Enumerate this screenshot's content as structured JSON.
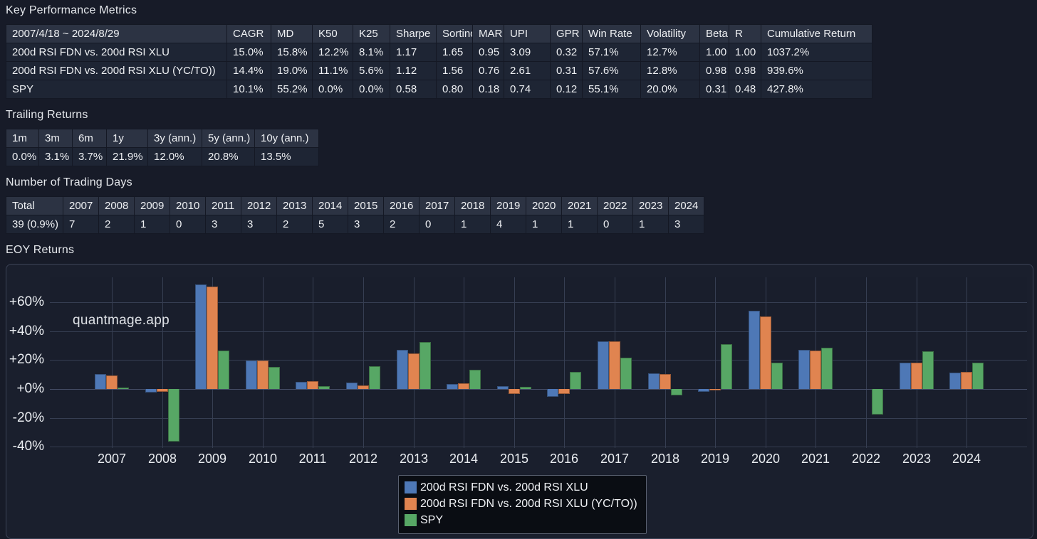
{
  "kpm": {
    "title": "Key Performance Metrics",
    "header": [
      "2007/4/18 ~ 2024/8/29",
      "CAGR",
      "MD",
      "K50",
      "K25",
      "Sharpe",
      "Sortino",
      "MAR",
      "UPI",
      "GPR",
      "Win Rate",
      "Volatility",
      "Beta",
      "R",
      "Cumulative Return"
    ],
    "rows": [
      [
        "200d RSI FDN vs. 200d RSI XLU",
        "15.0%",
        "15.8%",
        "12.2%",
        "8.1%",
        "1.17",
        "1.65",
        "0.95",
        "3.09",
        "0.32",
        "57.1%",
        "12.7%",
        "1.00",
        "1.00",
        "1037.2%"
      ],
      [
        "200d RSI FDN vs. 200d RSI XLU (YC/TO))",
        "14.4%",
        "19.0%",
        "11.1%",
        "5.6%",
        "1.12",
        "1.56",
        "0.76",
        "2.61",
        "0.31",
        "57.6%",
        "12.8%",
        "0.98",
        "0.98",
        "939.6%"
      ],
      [
        "SPY",
        "10.1%",
        "55.2%",
        "0.0%",
        "0.0%",
        "0.58",
        "0.80",
        "0.18",
        "0.74",
        "0.12",
        "55.1%",
        "20.0%",
        "0.31",
        "0.48",
        "427.8%"
      ]
    ]
  },
  "trailing": {
    "title": "Trailing Returns",
    "header": [
      "1m",
      "3m",
      "6m",
      "1y",
      "3y (ann.)",
      "5y (ann.)",
      "10y (ann.)"
    ],
    "rows": [
      [
        "0.0%",
        "3.1%",
        "3.7%",
        "21.9%",
        "12.0%",
        "20.8%",
        "13.5%"
      ]
    ]
  },
  "trading_days": {
    "title": "Number of Trading Days",
    "header": [
      "Total",
      "2007",
      "2008",
      "2009",
      "2010",
      "2011",
      "2012",
      "2013",
      "2014",
      "2015",
      "2016",
      "2017",
      "2018",
      "2019",
      "2020",
      "2021",
      "2022",
      "2023",
      "2024"
    ],
    "rows": [
      [
        "39 (0.9%)",
        "7",
        "2",
        "1",
        "0",
        "3",
        "3",
        "2",
        "5",
        "3",
        "2",
        "0",
        "1",
        "4",
        "1",
        "1",
        "0",
        "1",
        "3"
      ]
    ]
  },
  "eoy": {
    "title": "EOY Returns",
    "watermark": "quantmage.app"
  },
  "chart_data": {
    "type": "bar",
    "title": "EOY Returns",
    "categories": [
      "2007",
      "2008",
      "2009",
      "2010",
      "2011",
      "2012",
      "2013",
      "2014",
      "2015",
      "2016",
      "2017",
      "2018",
      "2019",
      "2020",
      "2021",
      "2022",
      "2023",
      "2024"
    ],
    "series": [
      {
        "name": "200d RSI FDN vs. 200d RSI XLU",
        "color": "#4e78b6",
        "values": [
          10.4,
          -2.3,
          72.6,
          19.9,
          4.9,
          4.4,
          27.3,
          3.5,
          2.2,
          -5.2,
          33.1,
          10.9,
          -2.0,
          54.0,
          27.3,
          0.0,
          18.3,
          11.5
        ]
      },
      {
        "name": "200d RSI FDN vs. 200d RSI XLU (YC/TO))",
        "color": "#e08450",
        "values": [
          9.4,
          -2.0,
          71.1,
          19.9,
          5.6,
          2.5,
          24.7,
          4.0,
          -3.6,
          -3.6,
          33.1,
          10.4,
          -1.0,
          50.2,
          26.5,
          0.0,
          18.3,
          12.0
        ]
      },
      {
        "name": "SPY",
        "color": "#57a765",
        "values": [
          1.2,
          -36.5,
          26.6,
          15.3,
          1.9,
          15.8,
          32.6,
          13.3,
          1.5,
          12.0,
          21.9,
          -4.4,
          31.1,
          18.3,
          28.7,
          -17.8,
          26.2,
          18.3
        ]
      }
    ],
    "ytick_labels": [
      "+60%",
      "+40%",
      "+20%",
      "+0%",
      "-20%",
      "-40%"
    ],
    "ytick_values": [
      60,
      40,
      20,
      0,
      -20,
      -40
    ],
    "ylim": [
      -40.9,
      77.3
    ],
    "grid": true,
    "legend_position": "bottom-center"
  }
}
